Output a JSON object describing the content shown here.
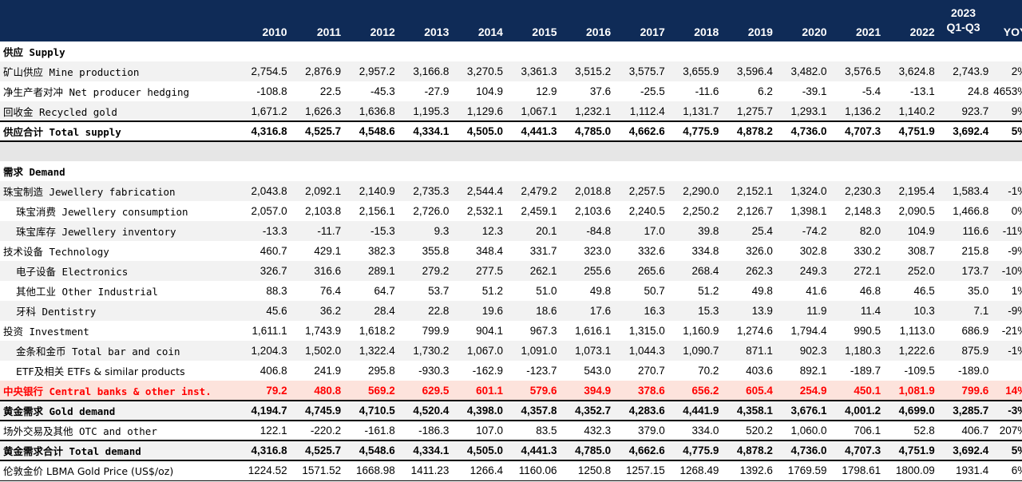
{
  "header": {
    "years": [
      "2010",
      "2011",
      "2012",
      "2013",
      "2014",
      "2015",
      "2016",
      "2017",
      "2018",
      "2019",
      "2020",
      "2021",
      "2022"
    ],
    "latest_top": "2023",
    "latest_bottom": "Q1-Q3",
    "yoy": "YOY"
  },
  "rows": {
    "supply_header": {
      "label": "供应 Supply"
    },
    "mine": {
      "label": "矿山供应 Mine production",
      "values": [
        "2,754.5",
        "2,876.9",
        "2,957.2",
        "3,166.8",
        "3,270.5",
        "3,361.3",
        "3,515.2",
        "3,575.7",
        "3,655.9",
        "3,596.4",
        "3,482.0",
        "3,576.5",
        "3,624.8",
        "2,743.9",
        "2%"
      ]
    },
    "hedging": {
      "label": "净生产者对冲 Net producer hedging",
      "values": [
        "-108.8",
        "22.5",
        "-45.3",
        "-27.9",
        "104.9",
        "12.9",
        "37.6",
        "-25.5",
        "-11.6",
        "6.2",
        "-39.1",
        "-5.4",
        "-13.1",
        "24.8",
        "4653%"
      ]
    },
    "recycled": {
      "label": "回收金 Recycled gold",
      "values": [
        "1,671.2",
        "1,626.3",
        "1,636.8",
        "1,195.3",
        "1,129.6",
        "1,067.1",
        "1,232.1",
        "1,112.4",
        "1,131.7",
        "1,275.7",
        "1,293.1",
        "1,136.2",
        "1,140.2",
        "923.7",
        "9%"
      ]
    },
    "total_supply": {
      "label": "供应合计 Total supply",
      "values": [
        "4,316.8",
        "4,525.7",
        "4,548.6",
        "4,334.1",
        "4,505.0",
        "4,441.3",
        "4,785.0",
        "4,662.6",
        "4,775.9",
        "4,878.2",
        "4,736.0",
        "4,707.3",
        "4,751.9",
        "3,692.4",
        "5%"
      ]
    },
    "demand_header": {
      "label": "需求 Demand"
    },
    "jewellery_fab": {
      "label": "珠宝制造 Jewellery fabrication",
      "values": [
        "2,043.8",
        "2,092.1",
        "2,140.9",
        "2,735.3",
        "2,544.4",
        "2,479.2",
        "2,018.8",
        "2,257.5",
        "2,290.0",
        "2,152.1",
        "1,324.0",
        "2,230.3",
        "2,195.4",
        "1,583.4",
        "-1%"
      ]
    },
    "jewellery_cons": {
      "label": "珠宝消费 Jewellery consumption",
      "values": [
        "2,057.0",
        "2,103.8",
        "2,156.1",
        "2,726.0",
        "2,532.1",
        "2,459.1",
        "2,103.6",
        "2,240.5",
        "2,250.2",
        "2,126.7",
        "1,398.1",
        "2,148.3",
        "2,090.5",
        "1,466.8",
        "0%"
      ]
    },
    "jewellery_inv": {
      "label": "珠宝库存 Jewellery inventory",
      "values": [
        "-13.3",
        "-11.7",
        "-15.3",
        "9.3",
        "12.3",
        "20.1",
        "-84.8",
        "17.0",
        "39.8",
        "25.4",
        "-74.2",
        "82.0",
        "104.9",
        "116.6",
        "-11%"
      ]
    },
    "technology": {
      "label": "技术设备 Technology",
      "values": [
        "460.7",
        "429.1",
        "382.3",
        "355.8",
        "348.4",
        "331.7",
        "323.0",
        "332.6",
        "334.8",
        "326.0",
        "302.8",
        "330.2",
        "308.7",
        "215.8",
        "-9%"
      ]
    },
    "electronics": {
      "label": "电子设备 Electronics",
      "values": [
        "326.7",
        "316.6",
        "289.1",
        "279.2",
        "277.5",
        "262.1",
        "255.6",
        "265.6",
        "268.4",
        "262.3",
        "249.3",
        "272.1",
        "252.0",
        "173.7",
        "-10%"
      ]
    },
    "other_ind": {
      "label": "其他工业 Other Industrial",
      "values": [
        "88.3",
        "76.4",
        "64.7",
        "53.7",
        "51.2",
        "51.0",
        "49.8",
        "50.7",
        "51.2",
        "49.8",
        "41.6",
        "46.8",
        "46.5",
        "35.0",
        "1%"
      ]
    },
    "dentistry": {
      "label": "牙科 Dentistry",
      "values": [
        "45.6",
        "36.2",
        "28.4",
        "22.8",
        "19.6",
        "18.6",
        "17.6",
        "16.3",
        "15.3",
        "13.9",
        "11.9",
        "11.4",
        "10.3",
        "7.1",
        "-9%"
      ]
    },
    "investment": {
      "label": "投资 Investment",
      "values": [
        "1,611.1",
        "1,743.9",
        "1,618.2",
        "799.9",
        "904.1",
        "967.3",
        "1,616.1",
        "1,315.0",
        "1,160.9",
        "1,274.6",
        "1,794.4",
        "990.5",
        "1,113.0",
        "686.9",
        "-21%"
      ]
    },
    "bar_coin": {
      "label": "金条和金币 Total bar and coin",
      "values": [
        "1,204.3",
        "1,502.0",
        "1,322.4",
        "1,730.2",
        "1,067.0",
        "1,091.0",
        "1,073.1",
        "1,044.3",
        "1,090.7",
        "871.1",
        "902.3",
        "1,180.3",
        "1,222.6",
        "875.9",
        "-1%"
      ]
    },
    "etf": {
      "label": "ETF及相关 ETFs & similar products",
      "values": [
        "406.8",
        "241.9",
        "295.8",
        "-930.3",
        "-162.9",
        "-123.7",
        "543.0",
        "270.7",
        "70.2",
        "403.6",
        "892.1",
        "-189.7",
        "-109.5",
        "-189.0",
        ""
      ]
    },
    "central_banks": {
      "label": "中央银行 Central banks & other inst.",
      "values": [
        "79.2",
        "480.8",
        "569.2",
        "629.5",
        "601.1",
        "579.6",
        "394.9",
        "378.6",
        "656.2",
        "605.4",
        "254.9",
        "450.1",
        "1,081.9",
        "799.6",
        "14%"
      ]
    },
    "gold_demand": {
      "label": "黄金需求 Gold demand",
      "values": [
        "4,194.7",
        "4,745.9",
        "4,710.5",
        "4,520.4",
        "4,398.0",
        "4,357.8",
        "4,352.7",
        "4,283.6",
        "4,441.9",
        "4,358.1",
        "3,676.1",
        "4,001.2",
        "4,699.0",
        "3,285.7",
        "-3%"
      ]
    },
    "otc": {
      "label": "场外交易及其他 OTC and other",
      "values": [
        "122.1",
        "-220.2",
        "-161.8",
        "-186.3",
        "107.0",
        "83.5",
        "432.3",
        "379.0",
        "334.0",
        "520.2",
        "1,060.0",
        "706.1",
        "52.8",
        "406.7",
        "207%"
      ]
    },
    "total_demand": {
      "label": "黄金需求合计 Total demand",
      "values": [
        "4,316.8",
        "4,525.7",
        "4,548.6",
        "4,334.1",
        "4,505.0",
        "4,441.3",
        "4,785.0",
        "4,662.6",
        "4,775.9",
        "4,878.2",
        "4,736.0",
        "4,707.3",
        "4,751.9",
        "3,692.4",
        "5%"
      ]
    },
    "lbma": {
      "label": "伦敦金价 LBMA Gold Price (US$/oz)",
      "values": [
        "1224.52",
        "1571.52",
        "1668.98",
        "1411.23",
        "1266.4",
        "1160.06",
        "1250.8",
        "1257.15",
        "1268.49",
        "1392.6",
        "1769.59",
        "1798.61",
        "1800.09",
        "1931.4",
        "6%"
      ]
    }
  },
  "colors": {
    "header_bg": "#0f2b57",
    "highlight_bg": "#fde3dc",
    "highlight_text": "#ff0000"
  }
}
